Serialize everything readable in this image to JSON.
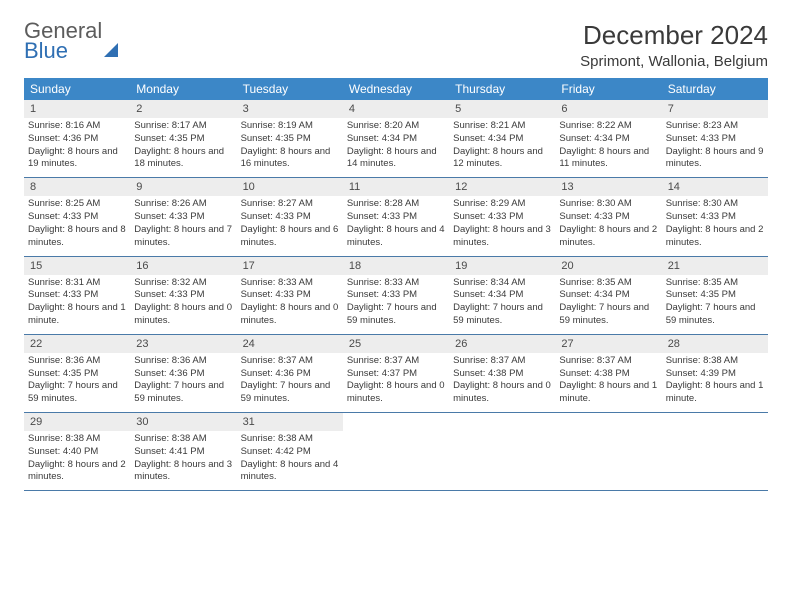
{
  "brand": {
    "part1": "General",
    "part2": "Blue"
  },
  "title": "December 2024",
  "location": "Sprimont, Wallonia, Belgium",
  "colors": {
    "header_bg": "#3c87c7",
    "header_text": "#ffffff",
    "daynum_bg": "#ededed",
    "rule": "#4a7aa8",
    "brand_blue": "#2f6fb3"
  },
  "day_names": [
    "Sunday",
    "Monday",
    "Tuesday",
    "Wednesday",
    "Thursday",
    "Friday",
    "Saturday"
  ],
  "weeks": [
    [
      {
        "n": "1",
        "sr": "8:16 AM",
        "ss": "4:36 PM",
        "dl": "8 hours and 19 minutes."
      },
      {
        "n": "2",
        "sr": "8:17 AM",
        "ss": "4:35 PM",
        "dl": "8 hours and 18 minutes."
      },
      {
        "n": "3",
        "sr": "8:19 AM",
        "ss": "4:35 PM",
        "dl": "8 hours and 16 minutes."
      },
      {
        "n": "4",
        "sr": "8:20 AM",
        "ss": "4:34 PM",
        "dl": "8 hours and 14 minutes."
      },
      {
        "n": "5",
        "sr": "8:21 AM",
        "ss": "4:34 PM",
        "dl": "8 hours and 12 minutes."
      },
      {
        "n": "6",
        "sr": "8:22 AM",
        "ss": "4:34 PM",
        "dl": "8 hours and 11 minutes."
      },
      {
        "n": "7",
        "sr": "8:23 AM",
        "ss": "4:33 PM",
        "dl": "8 hours and 9 minutes."
      }
    ],
    [
      {
        "n": "8",
        "sr": "8:25 AM",
        "ss": "4:33 PM",
        "dl": "8 hours and 8 minutes."
      },
      {
        "n": "9",
        "sr": "8:26 AM",
        "ss": "4:33 PM",
        "dl": "8 hours and 7 minutes."
      },
      {
        "n": "10",
        "sr": "8:27 AM",
        "ss": "4:33 PM",
        "dl": "8 hours and 6 minutes."
      },
      {
        "n": "11",
        "sr": "8:28 AM",
        "ss": "4:33 PM",
        "dl": "8 hours and 4 minutes."
      },
      {
        "n": "12",
        "sr": "8:29 AM",
        "ss": "4:33 PM",
        "dl": "8 hours and 3 minutes."
      },
      {
        "n": "13",
        "sr": "8:30 AM",
        "ss": "4:33 PM",
        "dl": "8 hours and 2 minutes."
      },
      {
        "n": "14",
        "sr": "8:30 AM",
        "ss": "4:33 PM",
        "dl": "8 hours and 2 minutes."
      }
    ],
    [
      {
        "n": "15",
        "sr": "8:31 AM",
        "ss": "4:33 PM",
        "dl": "8 hours and 1 minute."
      },
      {
        "n": "16",
        "sr": "8:32 AM",
        "ss": "4:33 PM",
        "dl": "8 hours and 0 minutes."
      },
      {
        "n": "17",
        "sr": "8:33 AM",
        "ss": "4:33 PM",
        "dl": "8 hours and 0 minutes."
      },
      {
        "n": "18",
        "sr": "8:33 AM",
        "ss": "4:33 PM",
        "dl": "7 hours and 59 minutes."
      },
      {
        "n": "19",
        "sr": "8:34 AM",
        "ss": "4:34 PM",
        "dl": "7 hours and 59 minutes."
      },
      {
        "n": "20",
        "sr": "8:35 AM",
        "ss": "4:34 PM",
        "dl": "7 hours and 59 minutes."
      },
      {
        "n": "21",
        "sr": "8:35 AM",
        "ss": "4:35 PM",
        "dl": "7 hours and 59 minutes."
      }
    ],
    [
      {
        "n": "22",
        "sr": "8:36 AM",
        "ss": "4:35 PM",
        "dl": "7 hours and 59 minutes."
      },
      {
        "n": "23",
        "sr": "8:36 AM",
        "ss": "4:36 PM",
        "dl": "7 hours and 59 minutes."
      },
      {
        "n": "24",
        "sr": "8:37 AM",
        "ss": "4:36 PM",
        "dl": "7 hours and 59 minutes."
      },
      {
        "n": "25",
        "sr": "8:37 AM",
        "ss": "4:37 PM",
        "dl": "8 hours and 0 minutes."
      },
      {
        "n": "26",
        "sr": "8:37 AM",
        "ss": "4:38 PM",
        "dl": "8 hours and 0 minutes."
      },
      {
        "n": "27",
        "sr": "8:37 AM",
        "ss": "4:38 PM",
        "dl": "8 hours and 1 minute."
      },
      {
        "n": "28",
        "sr": "8:38 AM",
        "ss": "4:39 PM",
        "dl": "8 hours and 1 minute."
      }
    ],
    [
      {
        "n": "29",
        "sr": "8:38 AM",
        "ss": "4:40 PM",
        "dl": "8 hours and 2 minutes."
      },
      {
        "n": "30",
        "sr": "8:38 AM",
        "ss": "4:41 PM",
        "dl": "8 hours and 3 minutes."
      },
      {
        "n": "31",
        "sr": "8:38 AM",
        "ss": "4:42 PM",
        "dl": "8 hours and 4 minutes."
      },
      null,
      null,
      null,
      null
    ]
  ],
  "labels": {
    "sunrise": "Sunrise:",
    "sunset": "Sunset:",
    "daylight": "Daylight:"
  }
}
